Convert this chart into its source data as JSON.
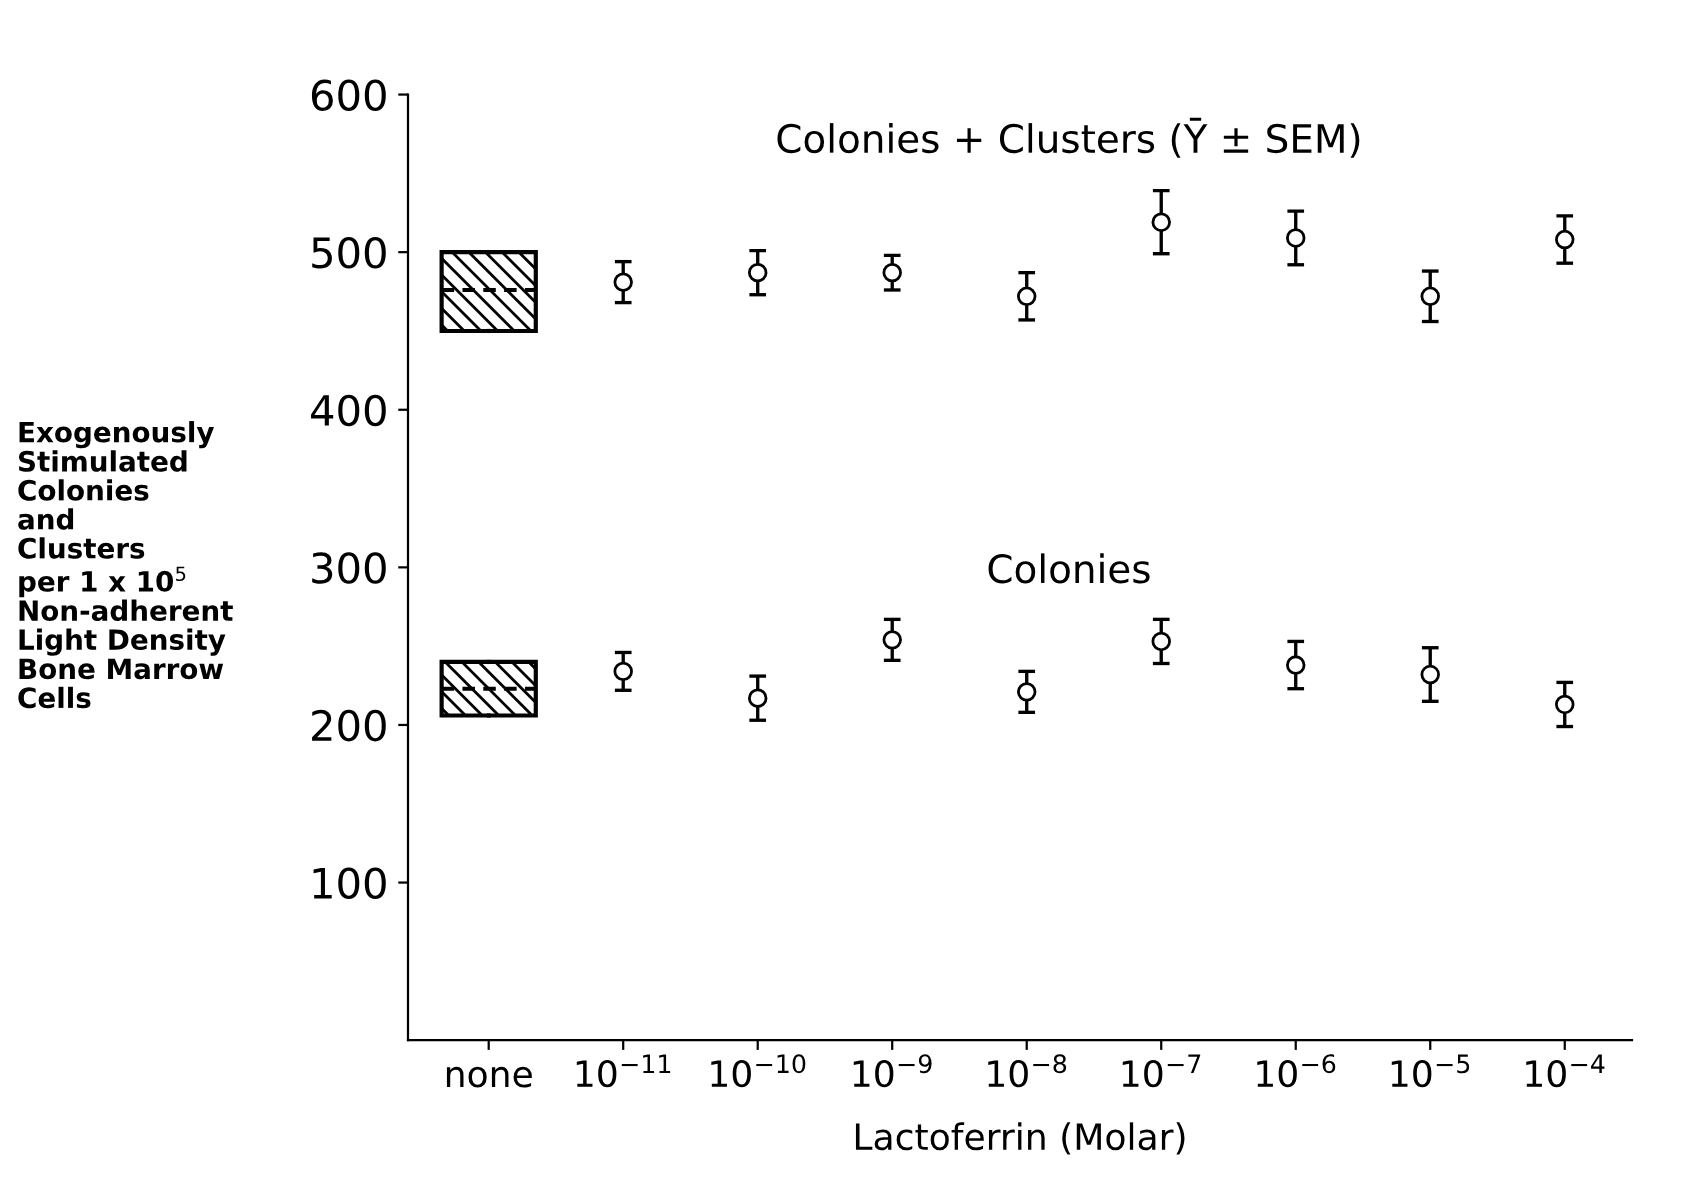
{
  "chart_data": {
    "type": "scatter",
    "categories": [
      "none",
      "10$^{−11}$",
      "10$^{−10}$",
      "10$^{−9}$",
      "10$^{−8}$",
      "10$^{−7}$",
      "10$^{−6}$",
      "10$^{−5}$",
      "10$^{−4}$"
    ],
    "xlabel": "Lactoferrin (Molar)",
    "ylabel": "Exogenously\nStimulated\nColonies\nand\nClusters\nper 1 x 10$^{5}$\nNon-adherent\nLight Density\nBone Marrow\nCells",
    "ylim": [
      0,
      600
    ],
    "yticks": [
      100,
      200,
      300,
      400,
      500,
      600
    ],
    "marker": "circle",
    "grid": false,
    "legend": false,
    "annotations": [
      "Colonies + Clusters (Ȳ ± SEM)",
      "Colonies"
    ],
    "series": [
      {
        "type": "box",
        "color": "#000000",
        "boxes": [
          {
            "low": 450,
            "q1": 450,
            "median": 476,
            "q3": 500,
            "high": 500
          },
          null,
          null,
          null,
          null,
          null,
          null,
          null,
          null
        ]
      },
      {
        "type": "box",
        "color": "#000000",
        "boxes": [
          {
            "low": 206,
            "q1": 206,
            "median": 223,
            "q3": 240,
            "high": 240
          },
          null,
          null,
          null,
          null,
          null,
          null,
          null,
          null
        ]
      },
      {
        "color": "#000000",
        "values": [
          null,
          481,
          487,
          487,
          472,
          519,
          509,
          472,
          508
        ],
        "errors": [
          null,
          13,
          14,
          11,
          15,
          20,
          17,
          16,
          15
        ]
      },
      {
        "color": "#000000",
        "values": [
          null,
          234,
          217,
          254,
          221,
          253,
          238,
          232,
          213
        ],
        "errors": [
          null,
          12,
          14,
          13,
          13,
          14,
          15,
          17,
          14
        ]
      }
    ]
  }
}
